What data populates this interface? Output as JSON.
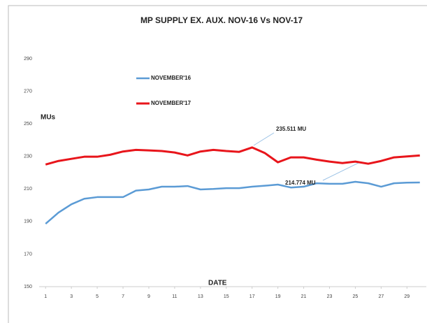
{
  "chart_data": {
    "type": "line",
    "title": "MP SUPPLY EX. AUX.  NOV-16 Vs NOV-17",
    "y_label": "MUs",
    "x_label": "DATE",
    "x": [
      1,
      2,
      3,
      4,
      5,
      6,
      7,
      8,
      9,
      10,
      11,
      12,
      13,
      14,
      15,
      16,
      17,
      18,
      19,
      20,
      21,
      22,
      23,
      24,
      25,
      26,
      27,
      28,
      29,
      30
    ],
    "series": [
      {
        "name": "NOVEMBER'16",
        "color": "#5b9bd5",
        "values": [
          188.6,
          195.5,
          200.6,
          204,
          205,
          205,
          205,
          209,
          209.7,
          211.4,
          211.4,
          211.8,
          209.7,
          210,
          210.5,
          210.5,
          211.4,
          212,
          212.7,
          210.9,
          211.4,
          213.5,
          213.2,
          213.2,
          214.4,
          213.5,
          211.4,
          213.5,
          213.9,
          214
        ]
      },
      {
        "name": "NOVEMBER'17",
        "color": "#e8151b",
        "values": [
          225,
          227.2,
          228.5,
          229.8,
          229.8,
          231,
          233,
          234,
          233.7,
          233.3,
          232.4,
          230.6,
          233,
          234,
          233.3,
          232.8,
          235.5,
          232,
          226.4,
          229.4,
          229.4,
          228,
          226.8,
          225.9,
          226.8,
          225.5,
          227.2,
          229.4,
          230,
          230.6
        ]
      }
    ],
    "annotations": [
      "235.511 MU",
      "214.774 MU"
    ],
    "xlim": [
      0.5,
      30.5
    ],
    "xticks": [
      1,
      3,
      5,
      7,
      9,
      11,
      13,
      15,
      17,
      19,
      21,
      23,
      25,
      27,
      29
    ],
    "ylim": [
      150,
      290
    ],
    "yticks": [
      150,
      170,
      190,
      210,
      230,
      250,
      270,
      290
    ],
    "grid": false
  }
}
